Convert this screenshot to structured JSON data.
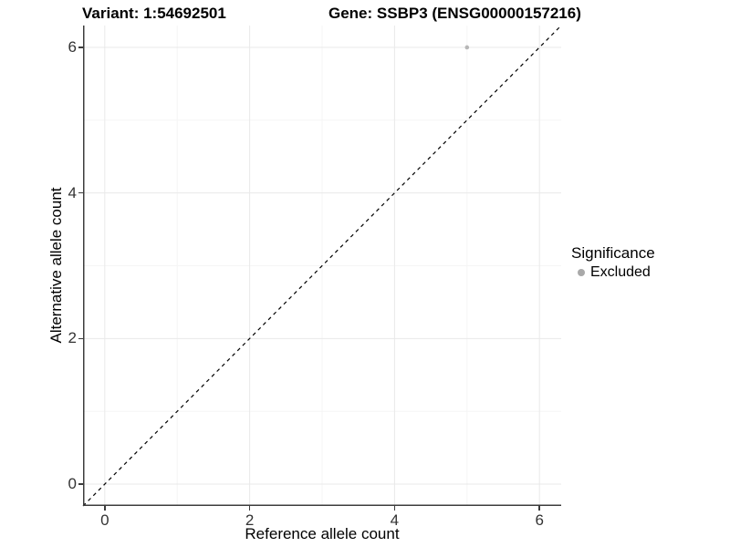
{
  "chart_data": {
    "type": "scatter",
    "title_left": "Variant: 1:54692501",
    "title_right": "Gene: SSBP3 (ENSG00000157216)",
    "xlabel": "Reference allele count",
    "ylabel": "Alternative allele count",
    "xlim": [
      -0.3,
      6.3
    ],
    "ylim": [
      -0.3,
      6.3
    ],
    "xticks": [
      0,
      2,
      4,
      6
    ],
    "yticks": [
      0,
      2,
      4,
      6
    ],
    "x_minor_ticks": [
      1,
      3,
      5
    ],
    "y_minor_ticks": [
      1,
      3,
      5
    ],
    "grid": "major and minor, light gray on white panel",
    "series": [
      {
        "name": "Excluded",
        "color": "#b7b7b7",
        "point_radius": 2.3,
        "points": [
          {
            "x": 5,
            "y": 6
          }
        ]
      }
    ],
    "reference_line": {
      "slope": 1,
      "intercept": 0,
      "linestyle": "dashed",
      "color": "#000000"
    },
    "legend": {
      "title": "Significance",
      "position": "right",
      "items": [
        {
          "label": "Excluded",
          "color": "#a9a9a9"
        }
      ]
    }
  },
  "style": {
    "background": "#ffffff",
    "major_grid": "#e9e9e9",
    "minor_grid": "#f5f5f5",
    "axis_line": "#3c3c3c",
    "tick_text": "#333333",
    "title_text": "#000000"
  }
}
